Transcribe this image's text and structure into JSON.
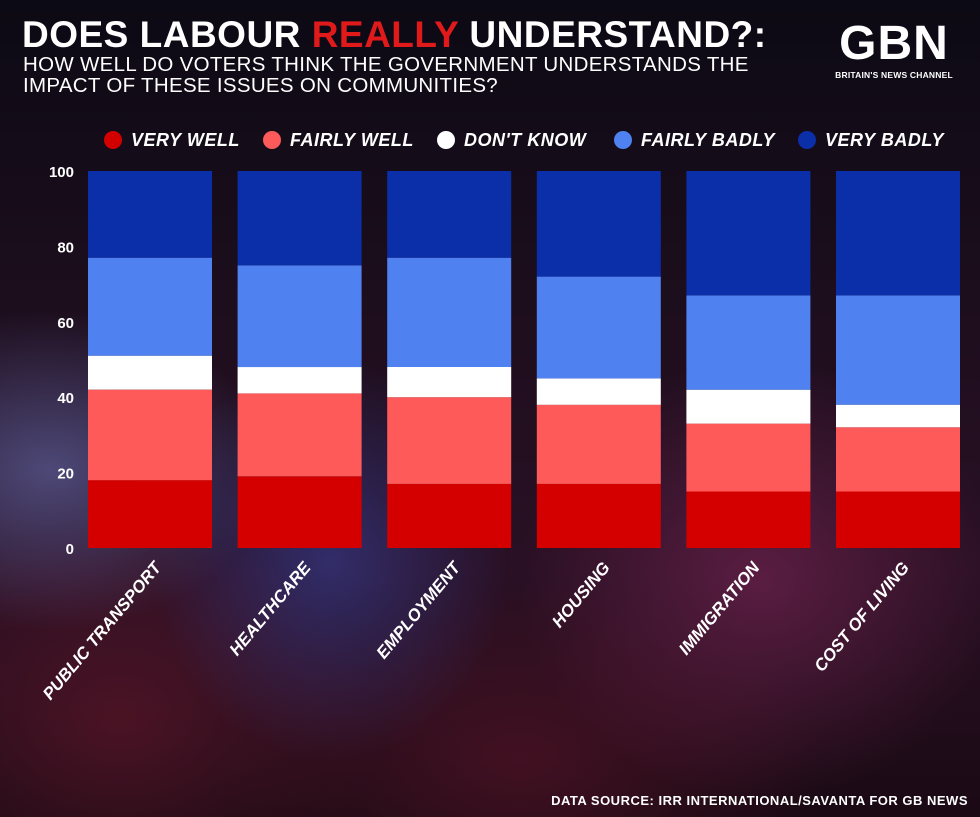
{
  "header": {
    "title_pre": "DOES LABOUR ",
    "title_accent": "REALLY",
    "title_post": " UNDERSTAND?:",
    "subtitle": "HOW WELL DO VOTERS THINK THE GOVERNMENT UNDERSTANDS THE IMPACT OF THESE ISSUES ON COMMUNITIES?"
  },
  "logo": {
    "mark": "GBN",
    "tagline": "BRITAIN'S NEWS CHANNEL"
  },
  "footer": {
    "source": "DATA SOURCE: IRR INTERNATIONAL/SAVANTA FOR GB NEWS"
  },
  "colors": {
    "very_well": "#d40000",
    "fairly_well": "#ff5a5a",
    "dont_know": "#ffffff",
    "fairly_badly": "#4f82f0",
    "very_badly": "#0a2fa8"
  },
  "chart_data": {
    "type": "bar",
    "stacked": true,
    "title": "HOW WELL DO VOTERS THINK THE GOVERNMENT UNDERSTANDS THE IMPACT OF THESE ISSUES ON COMMUNITIES?",
    "xlabel": "",
    "ylabel": "",
    "ylim": [
      0,
      100
    ],
    "yticks": [
      0,
      20,
      40,
      60,
      80,
      100
    ],
    "grid": false,
    "legend_position": "top",
    "categories": [
      "PUBLIC TRANSPORT",
      "HEALTHCARE",
      "EMPLOYMENT",
      "HOUSING",
      "IMMIGRATION",
      "COST OF LIVING"
    ],
    "series": [
      {
        "key": "very_well",
        "name": "VERY WELL",
        "values": [
          18,
          19,
          17,
          17,
          15,
          15
        ]
      },
      {
        "key": "fairly_well",
        "name": "FAIRLY WELL",
        "values": [
          24,
          22,
          23,
          21,
          18,
          17
        ]
      },
      {
        "key": "dont_know",
        "name": "DON'T KNOW",
        "values": [
          9,
          7,
          8,
          7,
          9,
          6
        ]
      },
      {
        "key": "fairly_badly",
        "name": "FAIRLY BADLY",
        "values": [
          26,
          27,
          29,
          27,
          25,
          29
        ]
      },
      {
        "key": "very_badly",
        "name": "VERY BADLY",
        "values": [
          23,
          25,
          23,
          28,
          33,
          33
        ]
      }
    ]
  }
}
